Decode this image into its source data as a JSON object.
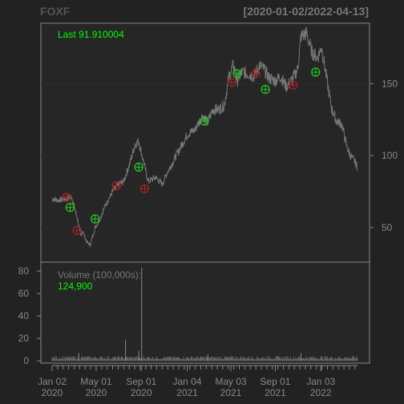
{
  "header": {
    "symbol": "FOXF",
    "range": "[2020-01-02/2022-04-13]"
  },
  "colors": {
    "background": "#222222",
    "panel_border": "#888888",
    "price_line": "#777777",
    "last_label": "#00ff00",
    "buy_marker": "#22cc22",
    "sell_marker": "#aa2222",
    "volume_bar": "#666666",
    "axis_text": "#888888"
  },
  "chart_data": [
    {
      "type": "line",
      "name": "price",
      "last_label": "Last 91.910004",
      "y_ticks": [
        50,
        100,
        150
      ],
      "ylim": [
        26,
        192
      ],
      "x_range": [
        "2020-01-02",
        "2022-04-13"
      ],
      "x_ticks": [
        {
          "date": "2020-01-02",
          "label": "Jan 02",
          "year": "2020"
        },
        {
          "date": "2020-05-01",
          "label": "May 01",
          "year": "2020"
        },
        {
          "date": "2020-09-01",
          "label": "Sep 01",
          "year": "2020"
        },
        {
          "date": "2021-01-04",
          "label": "Jan 04",
          "year": "2021"
        },
        {
          "date": "2021-05-03",
          "label": "May 03",
          "year": "2021"
        },
        {
          "date": "2021-09-01",
          "label": "Sep 01",
          "year": "2021"
        },
        {
          "date": "2022-01-03",
          "label": "Jan 03",
          "year": "2022"
        }
      ],
      "series": [
        {
          "name": "Close",
          "points": [
            [
              "2020-01-02",
              70
            ],
            [
              "2020-01-20",
              69
            ],
            [
              "2020-02-10",
              70
            ],
            [
              "2020-02-24",
              72
            ],
            [
              "2020-03-05",
              62
            ],
            [
              "2020-03-12",
              55
            ],
            [
              "2020-03-20",
              44
            ],
            [
              "2020-03-25",
              48
            ],
            [
              "2020-04-05",
              40
            ],
            [
              "2020-04-15",
              38
            ],
            [
              "2020-04-28",
              50
            ],
            [
              "2020-05-10",
              55
            ],
            [
              "2020-05-25",
              65
            ],
            [
              "2020-06-15",
              75
            ],
            [
              "2020-07-01",
              80
            ],
            [
              "2020-07-15",
              82
            ],
            [
              "2020-08-01",
              95
            ],
            [
              "2020-08-15",
              108
            ],
            [
              "2020-08-25",
              110
            ],
            [
              "2020-09-05",
              98
            ],
            [
              "2020-09-20",
              82
            ],
            [
              "2020-10-10",
              85
            ],
            [
              "2020-10-28",
              80
            ],
            [
              "2020-11-10",
              88
            ],
            [
              "2020-11-25",
              95
            ],
            [
              "2020-12-15",
              105
            ],
            [
              "2021-01-05",
              115
            ],
            [
              "2021-01-25",
              118
            ],
            [
              "2021-02-15",
              128
            ],
            [
              "2021-02-28",
              123
            ],
            [
              "2021-03-15",
              132
            ],
            [
              "2021-03-30",
              132
            ],
            [
              "2021-04-15",
              135
            ],
            [
              "2021-04-28",
              155
            ],
            [
              "2021-05-10",
              163
            ],
            [
              "2021-05-20",
              152
            ],
            [
              "2021-06-01",
              158
            ],
            [
              "2021-06-20",
              157
            ],
            [
              "2021-07-05",
              155
            ],
            [
              "2021-07-20",
              163
            ],
            [
              "2021-08-01",
              160
            ],
            [
              "2021-08-15",
              154
            ],
            [
              "2021-09-01",
              152
            ],
            [
              "2021-09-15",
              155
            ],
            [
              "2021-10-01",
              148
            ],
            [
              "2021-10-15",
              152
            ],
            [
              "2021-11-01",
              160
            ],
            [
              "2021-11-10",
              183
            ],
            [
              "2021-11-25",
              185
            ],
            [
              "2021-12-10",
              172
            ],
            [
              "2021-12-25",
              168
            ],
            [
              "2022-01-05",
              176
            ],
            [
              "2022-01-20",
              152
            ],
            [
              "2022-02-01",
              133
            ],
            [
              "2022-02-15",
              124
            ],
            [
              "2022-03-01",
              122
            ],
            [
              "2022-03-15",
              106
            ],
            [
              "2022-03-25",
              100
            ],
            [
              "2022-04-05",
              96
            ],
            [
              "2022-04-13",
              92
            ]
          ]
        }
      ],
      "markers": [
        {
          "date": "2020-02-10",
          "value": 71,
          "kind": "sell"
        },
        {
          "date": "2020-02-20",
          "value": 64,
          "kind": "buy"
        },
        {
          "date": "2020-03-10",
          "value": 48,
          "kind": "sell"
        },
        {
          "date": "2020-04-28",
          "value": 56,
          "kind": "buy"
        },
        {
          "date": "2020-06-25",
          "value": 79,
          "kind": "sell"
        },
        {
          "date": "2020-08-25",
          "value": 92,
          "kind": "buy"
        },
        {
          "date": "2020-09-10",
          "value": 77,
          "kind": "sell"
        },
        {
          "date": "2021-02-20",
          "value": 124,
          "kind": "buy"
        },
        {
          "date": "2021-05-05",
          "value": 151,
          "kind": "sell"
        },
        {
          "date": "2021-05-20",
          "value": 157,
          "kind": "buy"
        },
        {
          "date": "2021-07-10",
          "value": 157,
          "kind": "sell"
        },
        {
          "date": "2021-08-05",
          "value": 146,
          "kind": "buy"
        },
        {
          "date": "2021-10-20",
          "value": 149,
          "kind": "sell"
        },
        {
          "date": "2021-12-20",
          "value": 158,
          "kind": "buy"
        }
      ]
    },
    {
      "type": "bar",
      "name": "volume",
      "label": "Volume (100,000s):",
      "last_value": "124,900",
      "y_ticks": [
        0,
        20,
        40,
        60,
        80
      ],
      "ylim": [
        -2,
        88
      ],
      "spikes": [
        {
          "date": "2020-07-20",
          "value": 19
        },
        {
          "date": "2020-09-02",
          "value": 83
        },
        {
          "date": "2020-08-25",
          "value": 9
        },
        {
          "date": "2020-03-15",
          "value": 7
        },
        {
          "date": "2021-03-01",
          "value": 6
        },
        {
          "date": "2021-11-10",
          "value": 7
        }
      ],
      "baseline_level": 2.5
    }
  ]
}
